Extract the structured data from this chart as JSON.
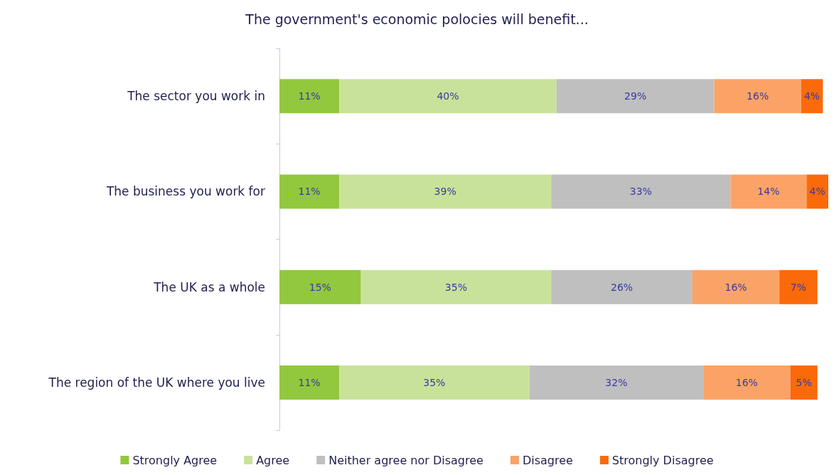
{
  "chart_data": {
    "type": "bar",
    "orientation": "horizontal",
    "stacked": true,
    "title": "The government's economic polocies will benefit...",
    "categories": [
      "The sector you work in",
      "The business you work for",
      "The UK as a whole",
      "The region of the UK where you live"
    ],
    "legend": "bottom",
    "grid": false,
    "series": [
      {
        "name": "Strongly Agree",
        "color": "#92c83e",
        "values": [
          11,
          11,
          15,
          11
        ],
        "value_labels": [
          "11%",
          "11%",
          "15%",
          "11%"
        ]
      },
      {
        "name": "Agree",
        "color": "#c9e29a",
        "values": [
          40,
          39,
          35,
          35
        ],
        "value_labels": [
          "40%",
          "39%",
          "35%",
          "35%"
        ]
      },
      {
        "name": "Neither agree nor Disagree",
        "color": "#bfbfbf",
        "values": [
          29,
          33,
          26,
          32
        ],
        "value_labels": [
          "29%",
          "33%",
          "26%",
          "32%"
        ]
      },
      {
        "name": "Disagree",
        "color": "#fba366",
        "values": [
          16,
          14,
          16,
          16
        ],
        "value_labels": [
          "16%",
          "14%",
          "16%",
          "16%"
        ]
      },
      {
        "name": "Strongly Disagree",
        "color": "#fa6a0a",
        "values": [
          4,
          4,
          7,
          5
        ],
        "value_labels": [
          "4%",
          "4%",
          "7%",
          "5%"
        ]
      }
    ]
  }
}
